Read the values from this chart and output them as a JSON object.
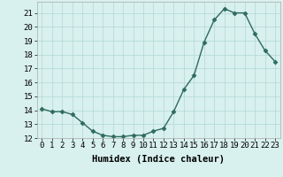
{
  "x": [
    0,
    1,
    2,
    3,
    4,
    5,
    6,
    7,
    8,
    9,
    10,
    11,
    12,
    13,
    14,
    15,
    16,
    17,
    18,
    19,
    20,
    21,
    22,
    23
  ],
  "y": [
    14.1,
    13.9,
    13.9,
    13.7,
    13.1,
    12.5,
    12.2,
    12.1,
    12.1,
    12.2,
    12.2,
    12.5,
    12.7,
    13.9,
    15.5,
    16.5,
    18.9,
    20.5,
    21.3,
    21.0,
    21.0,
    19.5,
    18.3,
    17.5
  ],
  "line_color": "#2e6b5e",
  "marker": "D",
  "marker_size": 2.5,
  "bg_color": "#d8f0ee",
  "grid_color": "#b0d8d4",
  "xlabel": "Humidex (Indice chaleur)",
  "xlim": [
    -0.5,
    23.5
  ],
  "ylim": [
    12,
    21.8
  ],
  "yticks": [
    12,
    13,
    14,
    15,
    16,
    17,
    18,
    19,
    20,
    21
  ],
  "xticks": [
    0,
    1,
    2,
    3,
    4,
    5,
    6,
    7,
    8,
    9,
    10,
    11,
    12,
    13,
    14,
    15,
    16,
    17,
    18,
    19,
    20,
    21,
    22,
    23
  ],
  "xlabel_fontsize": 7.5,
  "tick_fontsize": 6.5,
  "line_width": 1.0
}
